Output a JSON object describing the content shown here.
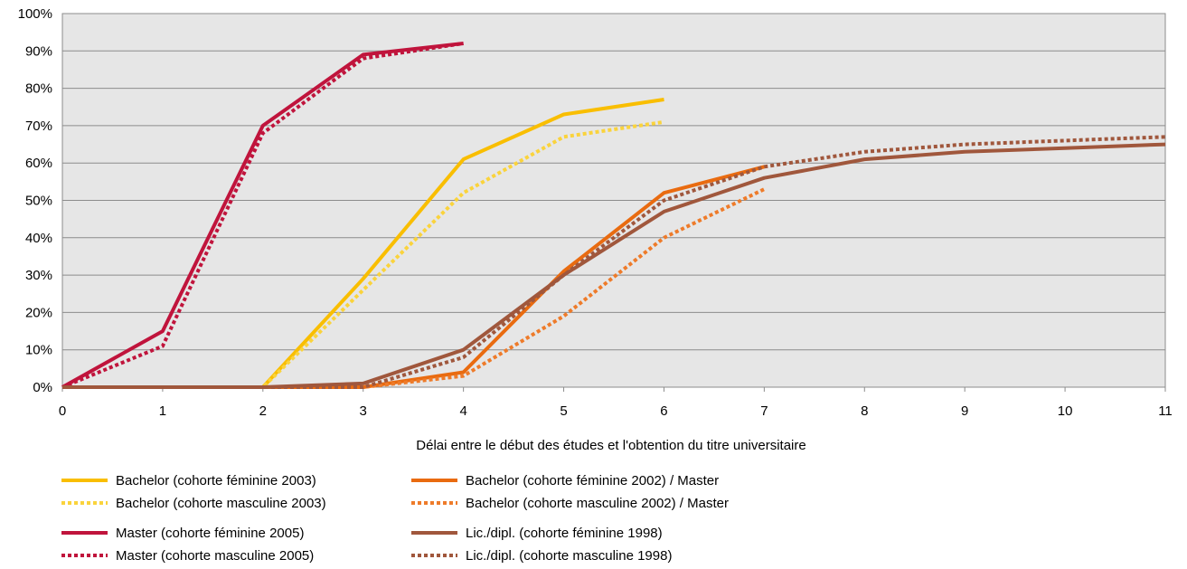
{
  "chart_data": {
    "type": "line",
    "xlabel": "Délai entre le début des études et l'obtention du titre universitaire",
    "ylabel": "",
    "xlim": [
      0,
      11
    ],
    "ylim": [
      0,
      100
    ],
    "x_ticks": [
      "0",
      "1",
      "2",
      "3",
      "4",
      "5",
      "6",
      "7",
      "8",
      "9",
      "10",
      "11"
    ],
    "y_ticks": [
      "0%",
      "10%",
      "20%",
      "30%",
      "40%",
      "50%",
      "60%",
      "70%",
      "80%",
      "90%",
      "100%"
    ],
    "grid": true,
    "legend_position": "bottom",
    "series": [
      {
        "name": "Bachelor (cohorte féminine 2003)",
        "color": "#F9BE00",
        "style": "solid",
        "x": [
          0,
          1,
          2,
          3,
          4,
          5,
          6
        ],
        "values": [
          0,
          0,
          0,
          29,
          61,
          73,
          77
        ]
      },
      {
        "name": "Bachelor (cohorte masculine 2003)",
        "color": "#FAD33C",
        "style": "dotted",
        "x": [
          0,
          1,
          2,
          3,
          4,
          5,
          6
        ],
        "values": [
          0,
          0,
          0,
          26,
          52,
          67,
          71
        ]
      },
      {
        "name": "Master (cohorte féminine 2005)",
        "color": "#C0143C",
        "style": "solid",
        "x": [
          0,
          1,
          2,
          3,
          4
        ],
        "values": [
          0,
          15,
          70,
          89,
          92
        ]
      },
      {
        "name": "Master (cohorte masculine 2005)",
        "color": "#C0143C",
        "style": "dotted",
        "x": [
          0,
          1,
          2,
          3,
          4
        ],
        "values": [
          0,
          11,
          68,
          88,
          92
        ]
      },
      {
        "name": "Bachelor (cohorte féminine 2002) / Master",
        "color": "#E96B10",
        "style": "solid",
        "x": [
          0,
          1,
          2,
          3,
          4,
          5,
          6,
          7
        ],
        "values": [
          0,
          0,
          0,
          0,
          4,
          31,
          52,
          59
        ]
      },
      {
        "name": "Bachelor (cohorte masculine 2002) / Master",
        "color": "#EE7B2A",
        "style": "dotted",
        "x": [
          0,
          1,
          2,
          3,
          4,
          5,
          6,
          7
        ],
        "values": [
          0,
          0,
          0,
          0,
          3,
          19,
          40,
          53
        ]
      },
      {
        "name": "Lic./dipl. (cohorte féminine 1998)",
        "color": "#A0573C",
        "style": "solid",
        "x": [
          0,
          1,
          2,
          3,
          4,
          5,
          6,
          7,
          8,
          9,
          10,
          11
        ],
        "values": [
          0,
          0,
          0,
          1,
          10,
          30,
          47,
          56,
          61,
          63,
          64,
          65
        ]
      },
      {
        "name": "Lic./dipl. (cohorte masculine 1998)",
        "color": "#A0573C",
        "style": "dotted",
        "x": [
          0,
          1,
          2,
          3,
          4,
          5,
          6,
          7,
          8,
          9,
          10,
          11
        ],
        "values": [
          0,
          0,
          0,
          0,
          8,
          30,
          50,
          59,
          63,
          65,
          66,
          67
        ]
      }
    ]
  }
}
